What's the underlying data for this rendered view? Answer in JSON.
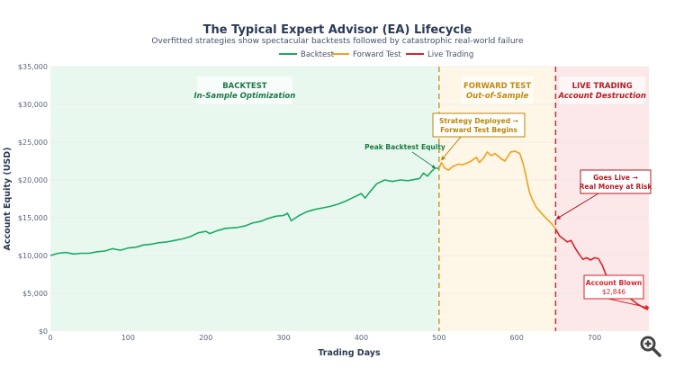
{
  "chart_data": {
    "type": "line",
    "title": "The Typical Expert Advisor (EA) Lifecycle",
    "subtitle": "Overfitted strategies show spectacular backtests followed by catastrophic real-world failure",
    "xlabel": "Trading Days",
    "ylabel": "Account Equity (USD)",
    "xlim": [
      0,
      770
    ],
    "ylim": [
      0,
      35000
    ],
    "x_ticks": [
      0,
      100,
      200,
      300,
      400,
      500,
      600,
      700
    ],
    "x_tick_labels": [
      "0",
      "100",
      "200",
      "300",
      "400",
      "500",
      "600",
      "700"
    ],
    "y_ticks": [
      0,
      5000,
      10000,
      15000,
      20000,
      25000,
      30000,
      35000
    ],
    "y_tick_labels": [
      "$0",
      "$5,000",
      "$10,000",
      "$15,000",
      "$20,000",
      "$25,000",
      "$30,000",
      "$35,000"
    ],
    "grid": true,
    "legend_position": "top-center",
    "series": [
      {
        "name": "Backtest",
        "color": "#1aaa63",
        "x": [
          0,
          10,
          20,
          30,
          40,
          50,
          60,
          70,
          80,
          90,
          100,
          110,
          120,
          130,
          140,
          150,
          160,
          170,
          180,
          190,
          200,
          205,
          215,
          225,
          240,
          250,
          260,
          270,
          280,
          290,
          300,
          305,
          310,
          320,
          330,
          340,
          350,
          360,
          370,
          380,
          390,
          400,
          405,
          410,
          420,
          430,
          440,
          450,
          460,
          470,
          475,
          480,
          485,
          490,
          495,
          500
        ],
        "y": [
          10000,
          10300,
          10400,
          10200,
          10300,
          10300,
          10500,
          10600,
          10900,
          10700,
          11000,
          11100,
          11400,
          11500,
          11700,
          11800,
          12000,
          12200,
          12500,
          13000,
          13200,
          12900,
          13300,
          13600,
          13700,
          13900,
          14300,
          14500,
          14900,
          15200,
          15300,
          15600,
          14600,
          15300,
          15800,
          16100,
          16300,
          16500,
          16800,
          17200,
          17700,
          18200,
          17600,
          18300,
          19500,
          20000,
          19800,
          20000,
          19900,
          20100,
          20200,
          20900,
          20500,
          21100,
          21600,
          21500
        ]
      },
      {
        "name": "Forward Test",
        "color": "#f0a020",
        "x": [
          500,
          503,
          507,
          512,
          518,
          525,
          530,
          540,
          548,
          552,
          558,
          562,
          567,
          572,
          580,
          585,
          592,
          598,
          604,
          608,
          612,
          616,
          620,
          625,
          630,
          638,
          645,
          650
        ],
        "y": [
          21500,
          22300,
          21600,
          21300,
          21800,
          22100,
          22000,
          22400,
          23000,
          22300,
          23000,
          23700,
          23200,
          23500,
          22800,
          22500,
          23700,
          23800,
          23500,
          22200,
          20500,
          18500,
          17400,
          16400,
          15800,
          14900,
          14200,
          13500
        ]
      },
      {
        "name": "Live Trading",
        "color": "#d7232b",
        "x": [
          650,
          655,
          660,
          665,
          670,
          675,
          680,
          685,
          690,
          695,
          700,
          705,
          710,
          715,
          720,
          725,
          730,
          735,
          740,
          745,
          750,
          755,
          760,
          765,
          769
        ],
        "y": [
          13500,
          12600,
          12200,
          11800,
          12000,
          11000,
          10200,
          9500,
          9700,
          9400,
          9700,
          9600,
          8700,
          7400,
          6500,
          6100,
          5600,
          5300,
          4900,
          4400,
          4000,
          3600,
          3300,
          3000,
          2846
        ]
      }
    ],
    "phases": [
      {
        "name": "BACKTEST",
        "subtitle": "In-Sample Optimization",
        "start": 0,
        "end": 500,
        "fill": "#e9f8ef",
        "text_color": "#1a7a45"
      },
      {
        "name": "FORWARD TEST",
        "subtitle": "Out-of-Sample",
        "start": 500,
        "end": 650,
        "fill": "#fef6e6",
        "text_color": "#c18a10"
      },
      {
        "name": "LIVE TRADING",
        "subtitle": "Account Destruction",
        "start": 650,
        "end": 770,
        "fill": "#fce8e8",
        "text_color": "#b31d25"
      }
    ],
    "vlines": [
      {
        "x": 500,
        "color": "#cc9a2e"
      },
      {
        "x": 650,
        "color": "#c0323a"
      }
    ],
    "annotations": [
      {
        "text": "Peak Backtest Equity",
        "x": 496,
        "y": 21600,
        "color": "#1a7a45",
        "boxed": false
      },
      {
        "text_lines": [
          "Strategy Deployed →",
          "Forward Test Begins"
        ],
        "x": 502,
        "y": 22400,
        "color": "#b8860b",
        "boxed": true
      },
      {
        "text_lines": [
          "Goes Live →",
          "Real Money at Risk"
        ],
        "x": 650,
        "y": 14600,
        "color": "#b31d25",
        "boxed": true
      },
      {
        "text_lines": [
          "Account Blown",
          "$2,846"
        ],
        "x": 769,
        "y": 2846,
        "color": "#d7232b",
        "boxed": true
      }
    ]
  },
  "toolbar": {
    "zoom_icon": "zoom-in-icon"
  }
}
